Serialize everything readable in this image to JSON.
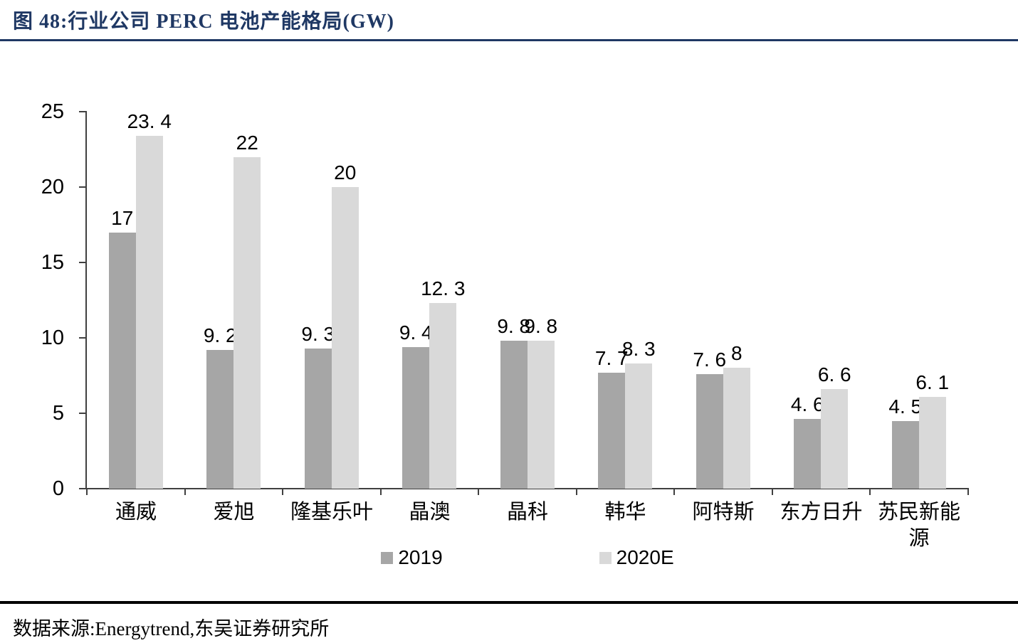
{
  "figure": {
    "title": "图 48:行业公司 PERC 电池产能格局(GW)",
    "source": "数据来源:Energytrend,东吴证券研究所"
  },
  "colors": {
    "title": "#1f3864",
    "title_rule": "#1f3864",
    "axis": "#404040",
    "series_2019": "#a6a6a6",
    "series_2020E": "#d9d9d9"
  },
  "chart_data": {
    "type": "bar",
    "title": "行业公司 PERC 电池产能格局(GW)",
    "categories": [
      "通威",
      "爱旭",
      "隆基乐叶",
      "晶澳",
      "晶科",
      "韩华",
      "阿特斯",
      "东方日升",
      "苏民新能源"
    ],
    "series": [
      {
        "name": "2019",
        "color": "#a6a6a6",
        "values": [
          17,
          9.2,
          9.3,
          9.4,
          9.8,
          7.7,
          7.6,
          4.6,
          4.5
        ],
        "labels": [
          "17",
          "9. 2",
          "9. 3",
          "9. 4",
          "9. 8",
          "7. 7",
          "7. 6",
          "4. 6",
          "4. 5"
        ]
      },
      {
        "name": "2020E",
        "color": "#d9d9d9",
        "values": [
          23.4,
          22,
          20,
          12.3,
          9.8,
          8.3,
          8,
          6.6,
          6.1
        ],
        "labels": [
          "23. 4",
          "22",
          "20",
          "12. 3",
          "9. 8",
          "8. 3",
          "8",
          "6. 6",
          "6. 1"
        ]
      }
    ],
    "xlabel": "",
    "ylabel": "",
    "ylim": [
      0,
      25
    ],
    "yticks": [
      0,
      5,
      10,
      15,
      20,
      25
    ],
    "grid": false,
    "legend_position": "bottom",
    "data_labels": true
  }
}
